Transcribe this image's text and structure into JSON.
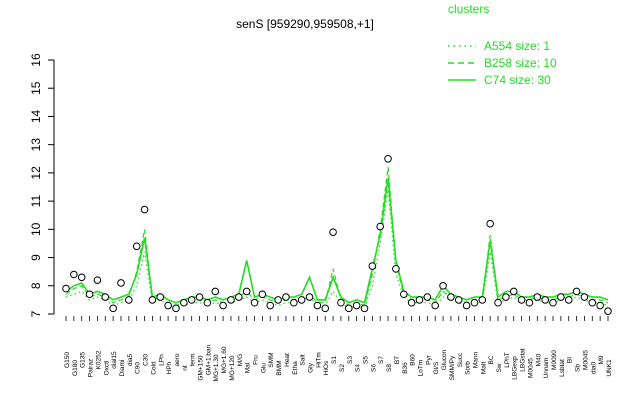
{
  "chart_data": {
    "type": "line",
    "title": "senS [959290,959508,+1]",
    "xlabel": "",
    "ylabel": "",
    "ylim": [
      7,
      16
    ],
    "yticks": [
      7,
      8,
      9,
      10,
      11,
      12,
      13,
      14,
      15,
      16
    ],
    "grid": false,
    "legend_position": "top-right",
    "legend_title": "clusters",
    "colors": {
      "series": "#22dd22",
      "points": "#000000",
      "axis": "#000000"
    },
    "x_tick_labels": [
      "G150",
      "G180",
      "G135",
      "Pairaz",
      "K0252",
      "Oxctl",
      "dial15",
      "Diami",
      "dia5",
      "C90",
      "C30",
      "Cold",
      "LPh",
      "HPh",
      "aero",
      "nt",
      "ferm",
      "GM+150",
      "GM+1.ban",
      "MG+1.30",
      "MG+1.60",
      "MG+120",
      "M/G",
      "Mal",
      "Fru",
      "Glu",
      "SMM",
      "BMM",
      "Heat",
      "Etha",
      "Salt",
      "Gly",
      "HiTm",
      "HiOs",
      "S1",
      "S2",
      "S3",
      "S4",
      "S5",
      "S6",
      "S7",
      "S8",
      "BT",
      "B36",
      "B60",
      "LoTm",
      "Pyr",
      "Gl/S",
      "Glucon",
      "SMM/Py",
      "Succ",
      "Sorb",
      "Mann",
      "Malt",
      "BC",
      "Sw",
      "LPhT",
      "LBGexp",
      "LBGstat",
      "M0045",
      "M40",
      "Unnam",
      "M0090",
      "Lsbtat",
      "BI",
      "Sb",
      "M0045",
      "dia0",
      "M9",
      "UNK1"
    ],
    "series": [
      {
        "name": "A554 size: 1",
        "style": "dotted",
        "values": [
          7.6,
          7.7,
          7.8,
          7.5,
          7.6,
          7.5,
          7.3,
          7.4,
          7.5,
          8.0,
          9.2,
          7.4,
          7.5,
          7.3,
          7.2,
          7.3,
          7.4,
          7.4,
          7.3,
          7.4,
          7.3,
          7.4,
          7.5,
          7.6,
          7.4,
          7.5,
          7.4,
          7.3,
          7.4,
          7.4,
          7.5,
          7.6,
          7.3,
          7.3,
          7.8,
          7.4,
          7.2,
          7.3,
          7.2,
          8.0,
          9.5,
          11.4,
          8.4,
          7.6,
          7.4,
          7.4,
          7.4,
          7.3,
          7.6,
          7.5,
          7.4,
          7.3,
          7.4,
          7.4,
          9.2,
          7.4,
          7.5,
          7.6,
          7.4,
          7.4,
          7.5,
          7.4,
          7.4,
          7.5,
          7.5,
          7.6,
          7.5,
          7.4,
          7.4,
          7.3
        ]
      },
      {
        "name": "B258 size: 10",
        "style": "dashed",
        "values": [
          7.7,
          7.9,
          8.0,
          7.6,
          7.7,
          7.6,
          7.4,
          7.5,
          7.6,
          8.5,
          10.0,
          7.5,
          7.6,
          7.4,
          7.3,
          7.4,
          7.5,
          7.5,
          7.4,
          7.5,
          7.4,
          7.5,
          7.6,
          7.8,
          7.5,
          7.6,
          7.5,
          7.4,
          7.5,
          7.5,
          7.6,
          7.7,
          7.4,
          7.4,
          8.6,
          7.5,
          7.3,
          7.4,
          7.3,
          8.4,
          10.0,
          12.2,
          8.8,
          7.7,
          7.5,
          7.5,
          7.5,
          7.4,
          7.8,
          7.6,
          7.5,
          7.4,
          7.5,
          7.5,
          9.8,
          7.5,
          7.6,
          7.7,
          7.5,
          7.5,
          7.6,
          7.5,
          7.5,
          7.6,
          7.6,
          7.7,
          7.6,
          7.5,
          7.5,
          7.4
        ]
      },
      {
        "name": "C74 size: 30",
        "style": "solid",
        "values": [
          7.8,
          8.0,
          8.1,
          7.7,
          7.8,
          7.7,
          7.5,
          7.6,
          7.7,
          8.4,
          9.7,
          7.6,
          7.7,
          7.5,
          7.4,
          7.5,
          7.6,
          7.6,
          7.5,
          7.6,
          7.5,
          7.6,
          7.7,
          8.9,
          7.6,
          7.7,
          7.6,
          7.5,
          7.6,
          7.6,
          7.7,
          8.3,
          7.5,
          7.5,
          8.3,
          7.6,
          7.4,
          7.5,
          7.4,
          8.6,
          9.8,
          11.8,
          8.9,
          7.8,
          7.6,
          7.6,
          7.6,
          7.5,
          8.0,
          7.7,
          7.6,
          7.5,
          7.6,
          7.6,
          9.6,
          7.6,
          7.8,
          7.8,
          7.6,
          7.6,
          7.7,
          7.6,
          7.6,
          7.7,
          7.7,
          7.8,
          7.7,
          7.6,
          7.6,
          7.5
        ]
      }
    ],
    "points": [
      7.9,
      8.4,
      8.3,
      7.7,
      8.2,
      7.6,
      7.2,
      8.1,
      7.5,
      9.4,
      10.7,
      7.5,
      7.6,
      7.3,
      7.2,
      7.4,
      7.5,
      7.6,
      7.4,
      7.8,
      7.3,
      7.5,
      7.6,
      7.8,
      7.4,
      7.7,
      7.3,
      7.5,
      7.6,
      7.4,
      7.5,
      7.6,
      7.3,
      7.2,
      9.9,
      7.4,
      7.2,
      7.3,
      7.2,
      8.7,
      10.1,
      12.5,
      8.6,
      7.7,
      7.4,
      7.5,
      7.6,
      7.3,
      8.0,
      7.6,
      7.5,
      7.3,
      7.4,
      7.5,
      10.2,
      7.4,
      7.6,
      7.8,
      7.5,
      7.4,
      7.6,
      7.5,
      7.4,
      7.6,
      7.5,
      7.8,
      7.6,
      7.4,
      7.3,
      7.1
    ]
  }
}
